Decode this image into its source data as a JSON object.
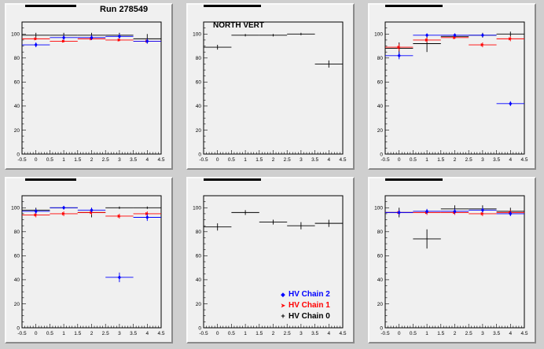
{
  "run_label": "Run 278549",
  "north_vert_label": "NORTH VERT",
  "colors": {
    "chain2": "#0000ff",
    "chain1": "#ff0000",
    "chain0": "#000000"
  },
  "legend": [
    {
      "name": "HV Chain 2",
      "marker": "diamond",
      "color": "#0000ff",
      "glyph": "◆"
    },
    {
      "name": "HV Chain 1",
      "marker": "arrow",
      "color": "#ff0000",
      "glyph": "➤"
    },
    {
      "name": "HV Chain 0",
      "marker": "plus",
      "color": "#000000",
      "glyph": "+"
    }
  ],
  "chart_data": [
    {
      "type": "scatter",
      "title": "",
      "xlim": [
        -0.5,
        4.5
      ],
      "ylim": [
        0,
        110
      ],
      "xticks": [
        "-0.5",
        "0",
        "0.5",
        "1",
        "1.5",
        "2",
        "2.5",
        "3",
        "3.5",
        "4",
        "4.5"
      ],
      "yticks": [
        "0",
        "20",
        "40",
        "60",
        "80",
        "100"
      ],
      "series": [
        {
          "key": "chain0",
          "x": [
            0,
            1,
            2,
            3,
            4
          ],
          "y": [
            99,
            99,
            99,
            99,
            96
          ],
          "yerr": [
            2,
            2,
            2,
            2,
            4
          ]
        },
        {
          "key": "chain1",
          "x": [
            0,
            1,
            2,
            3,
            4
          ],
          "y": [
            96,
            94,
            96,
            95,
            94
          ],
          "yerr": [
            1,
            1,
            1,
            1,
            1
          ]
        },
        {
          "key": "chain2",
          "x": [
            0,
            1,
            2,
            3,
            4
          ],
          "y": [
            91,
            97,
            97,
            98,
            94
          ],
          "yerr": [
            2,
            2,
            2,
            2,
            2
          ]
        }
      ]
    },
    {
      "type": "scatter",
      "title": "",
      "xlim": [
        -0.5,
        4.5
      ],
      "ylim": [
        0,
        110
      ],
      "xticks": [
        "-0.5",
        "0",
        "0.5",
        "1",
        "1.5",
        "2",
        "2.5",
        "3",
        "3.5",
        "4",
        "4.5"
      ],
      "yticks": [
        "0",
        "20",
        "40",
        "60",
        "80",
        "100"
      ],
      "series": [
        {
          "key": "chain0",
          "x": [
            0,
            1,
            2,
            3,
            4
          ],
          "y": [
            89,
            99,
            99,
            100,
            75
          ],
          "yerr": [
            2,
            1,
            1,
            1,
            3
          ]
        }
      ]
    },
    {
      "type": "scatter",
      "title": "",
      "xlim": [
        -0.5,
        4.5
      ],
      "ylim": [
        0,
        110
      ],
      "xticks": [
        "-0.5",
        "0",
        "0.5",
        "1",
        "1.5",
        "2",
        "2.5",
        "3",
        "3.5",
        "4",
        "4.5"
      ],
      "yticks": [
        "0",
        "20",
        "40",
        "60",
        "80",
        "100"
      ],
      "series": [
        {
          "key": "chain0",
          "x": [
            0,
            1,
            2,
            3,
            4
          ],
          "y": [
            88,
            92,
            98,
            99,
            100
          ],
          "yerr": [
            5,
            7,
            2,
            2,
            2
          ]
        },
        {
          "key": "chain1",
          "x": [
            0,
            1,
            2,
            3,
            4
          ],
          "y": [
            89,
            95,
            97,
            91,
            96
          ],
          "yerr": [
            3,
            2,
            1,
            2,
            2
          ]
        },
        {
          "key": "chain2",
          "x": [
            0,
            1,
            2,
            3,
            4
          ],
          "y": [
            82,
            99,
            99,
            99,
            42
          ],
          "yerr": [
            3,
            1,
            1,
            1,
            2
          ]
        }
      ]
    },
    {
      "type": "scatter",
      "title": "",
      "xlim": [
        -0.5,
        4.5
      ],
      "ylim": [
        0,
        110
      ],
      "xticks": [
        "-0.5",
        "0",
        "0.5",
        "1",
        "1.5",
        "2",
        "2.5",
        "3",
        "3.5",
        "4",
        "4.5"
      ],
      "yticks": [
        "0",
        "20",
        "40",
        "60",
        "80",
        "100"
      ],
      "series": [
        {
          "key": "chain0",
          "x": [
            0,
            1,
            2,
            3,
            4
          ],
          "y": [
            98,
            100,
            96,
            100,
            100
          ],
          "yerr": [
            2,
            1,
            4,
            1,
            1
          ]
        },
        {
          "key": "chain1",
          "x": [
            0,
            1,
            2,
            3,
            4
          ],
          "y": [
            94,
            95,
            96,
            93,
            95
          ],
          "yerr": [
            2,
            2,
            2,
            2,
            2
          ]
        },
        {
          "key": "chain2",
          "x": [
            0,
            1,
            2,
            3,
            4
          ],
          "y": [
            97,
            100,
            98,
            42,
            92
          ],
          "yerr": [
            2,
            1,
            2,
            4,
            3
          ]
        }
      ]
    },
    {
      "type": "scatter",
      "title": "",
      "xlim": [
        -0.5,
        4.5
      ],
      "ylim": [
        0,
        110
      ],
      "xticks": [
        "-0.5",
        "0",
        "0.5",
        "1",
        "1.5",
        "2",
        "2.5",
        "3",
        "3.5",
        "4",
        "4.5"
      ],
      "yticks": [
        "0",
        "20",
        "40",
        "60",
        "80",
        "100"
      ],
      "series": [
        {
          "key": "chain0",
          "x": [
            0,
            1,
            2,
            3,
            4
          ],
          "y": [
            84,
            96,
            88,
            85,
            87
          ],
          "yerr": [
            3,
            2,
            2,
            3,
            3
          ]
        }
      ]
    },
    {
      "type": "scatter",
      "title": "",
      "xlim": [
        -0.5,
        4.5
      ],
      "ylim": [
        0,
        110
      ],
      "xticks": [
        "-0.5",
        "0",
        "0.5",
        "1",
        "1.5",
        "2",
        "2.5",
        "3",
        "3.5",
        "4",
        "4.5"
      ],
      "yticks": [
        "0",
        "20",
        "40",
        "60",
        "80",
        "100"
      ],
      "series": [
        {
          "key": "chain0",
          "x": [
            0,
            1,
            2,
            3,
            4
          ],
          "y": [
            96,
            74,
            99,
            99,
            97
          ],
          "yerr": [
            4,
            8,
            3,
            3,
            3
          ]
        },
        {
          "key": "chain1",
          "x": [
            0,
            1,
            2,
            3,
            4
          ],
          "y": [
            96,
            96,
            96,
            95,
            96
          ],
          "yerr": [
            2,
            2,
            2,
            2,
            2
          ]
        },
        {
          "key": "chain2",
          "x": [
            0,
            1,
            2,
            3,
            4
          ],
          "y": [
            96,
            97,
            97,
            98,
            95
          ],
          "yerr": [
            2,
            2,
            2,
            2,
            2
          ]
        }
      ]
    }
  ]
}
